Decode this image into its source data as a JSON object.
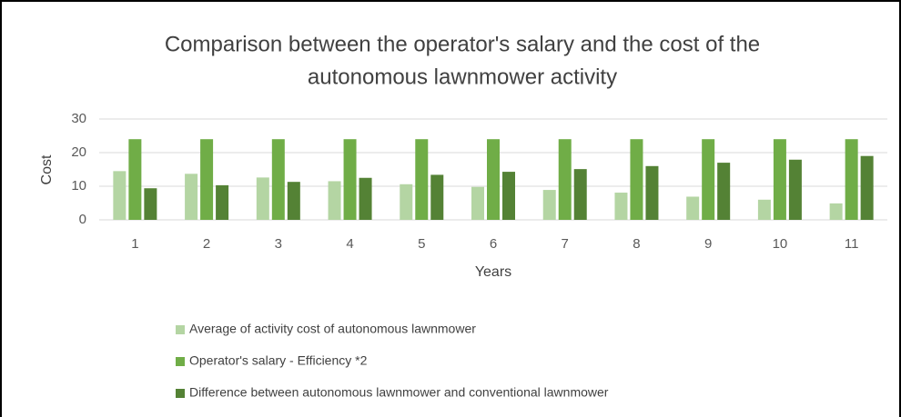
{
  "chart_data": {
    "type": "bar",
    "title": [
      "Comparison between the operator's salary and the cost of the",
      "autonomous lawnmower activity"
    ],
    "xlabel": "Years",
    "ylabel": "Cost",
    "categories": [
      "1",
      "2",
      "3",
      "4",
      "5",
      "6",
      "7",
      "8",
      "9",
      "10",
      "11"
    ],
    "series": [
      {
        "name": "Average of activity cost of autonomous lawnmower",
        "color": "#b4d5a3",
        "values": [
          14.5,
          13.7,
          12.6,
          11.5,
          10.6,
          9.8,
          8.9,
          8.1,
          6.9,
          6.0,
          4.9
        ]
      },
      {
        "name": "Operator's salary - Efficiency *2",
        "color": "#70ad47",
        "values": [
          24,
          24,
          24,
          24,
          24,
          24,
          24,
          24,
          24,
          24,
          24
        ]
      },
      {
        "name": "Difference between autonomous lawnmower and conventional lawnmower",
        "color": "#548235",
        "values": [
          9.4,
          10.3,
          11.3,
          12.5,
          13.4,
          14.3,
          15.1,
          16.0,
          17.0,
          17.9,
          19.0
        ]
      }
    ],
    "ylim": [
      0,
      30
    ],
    "yticks": [
      0,
      10,
      20,
      30
    ],
    "grid": true,
    "legend": "bottom"
  }
}
